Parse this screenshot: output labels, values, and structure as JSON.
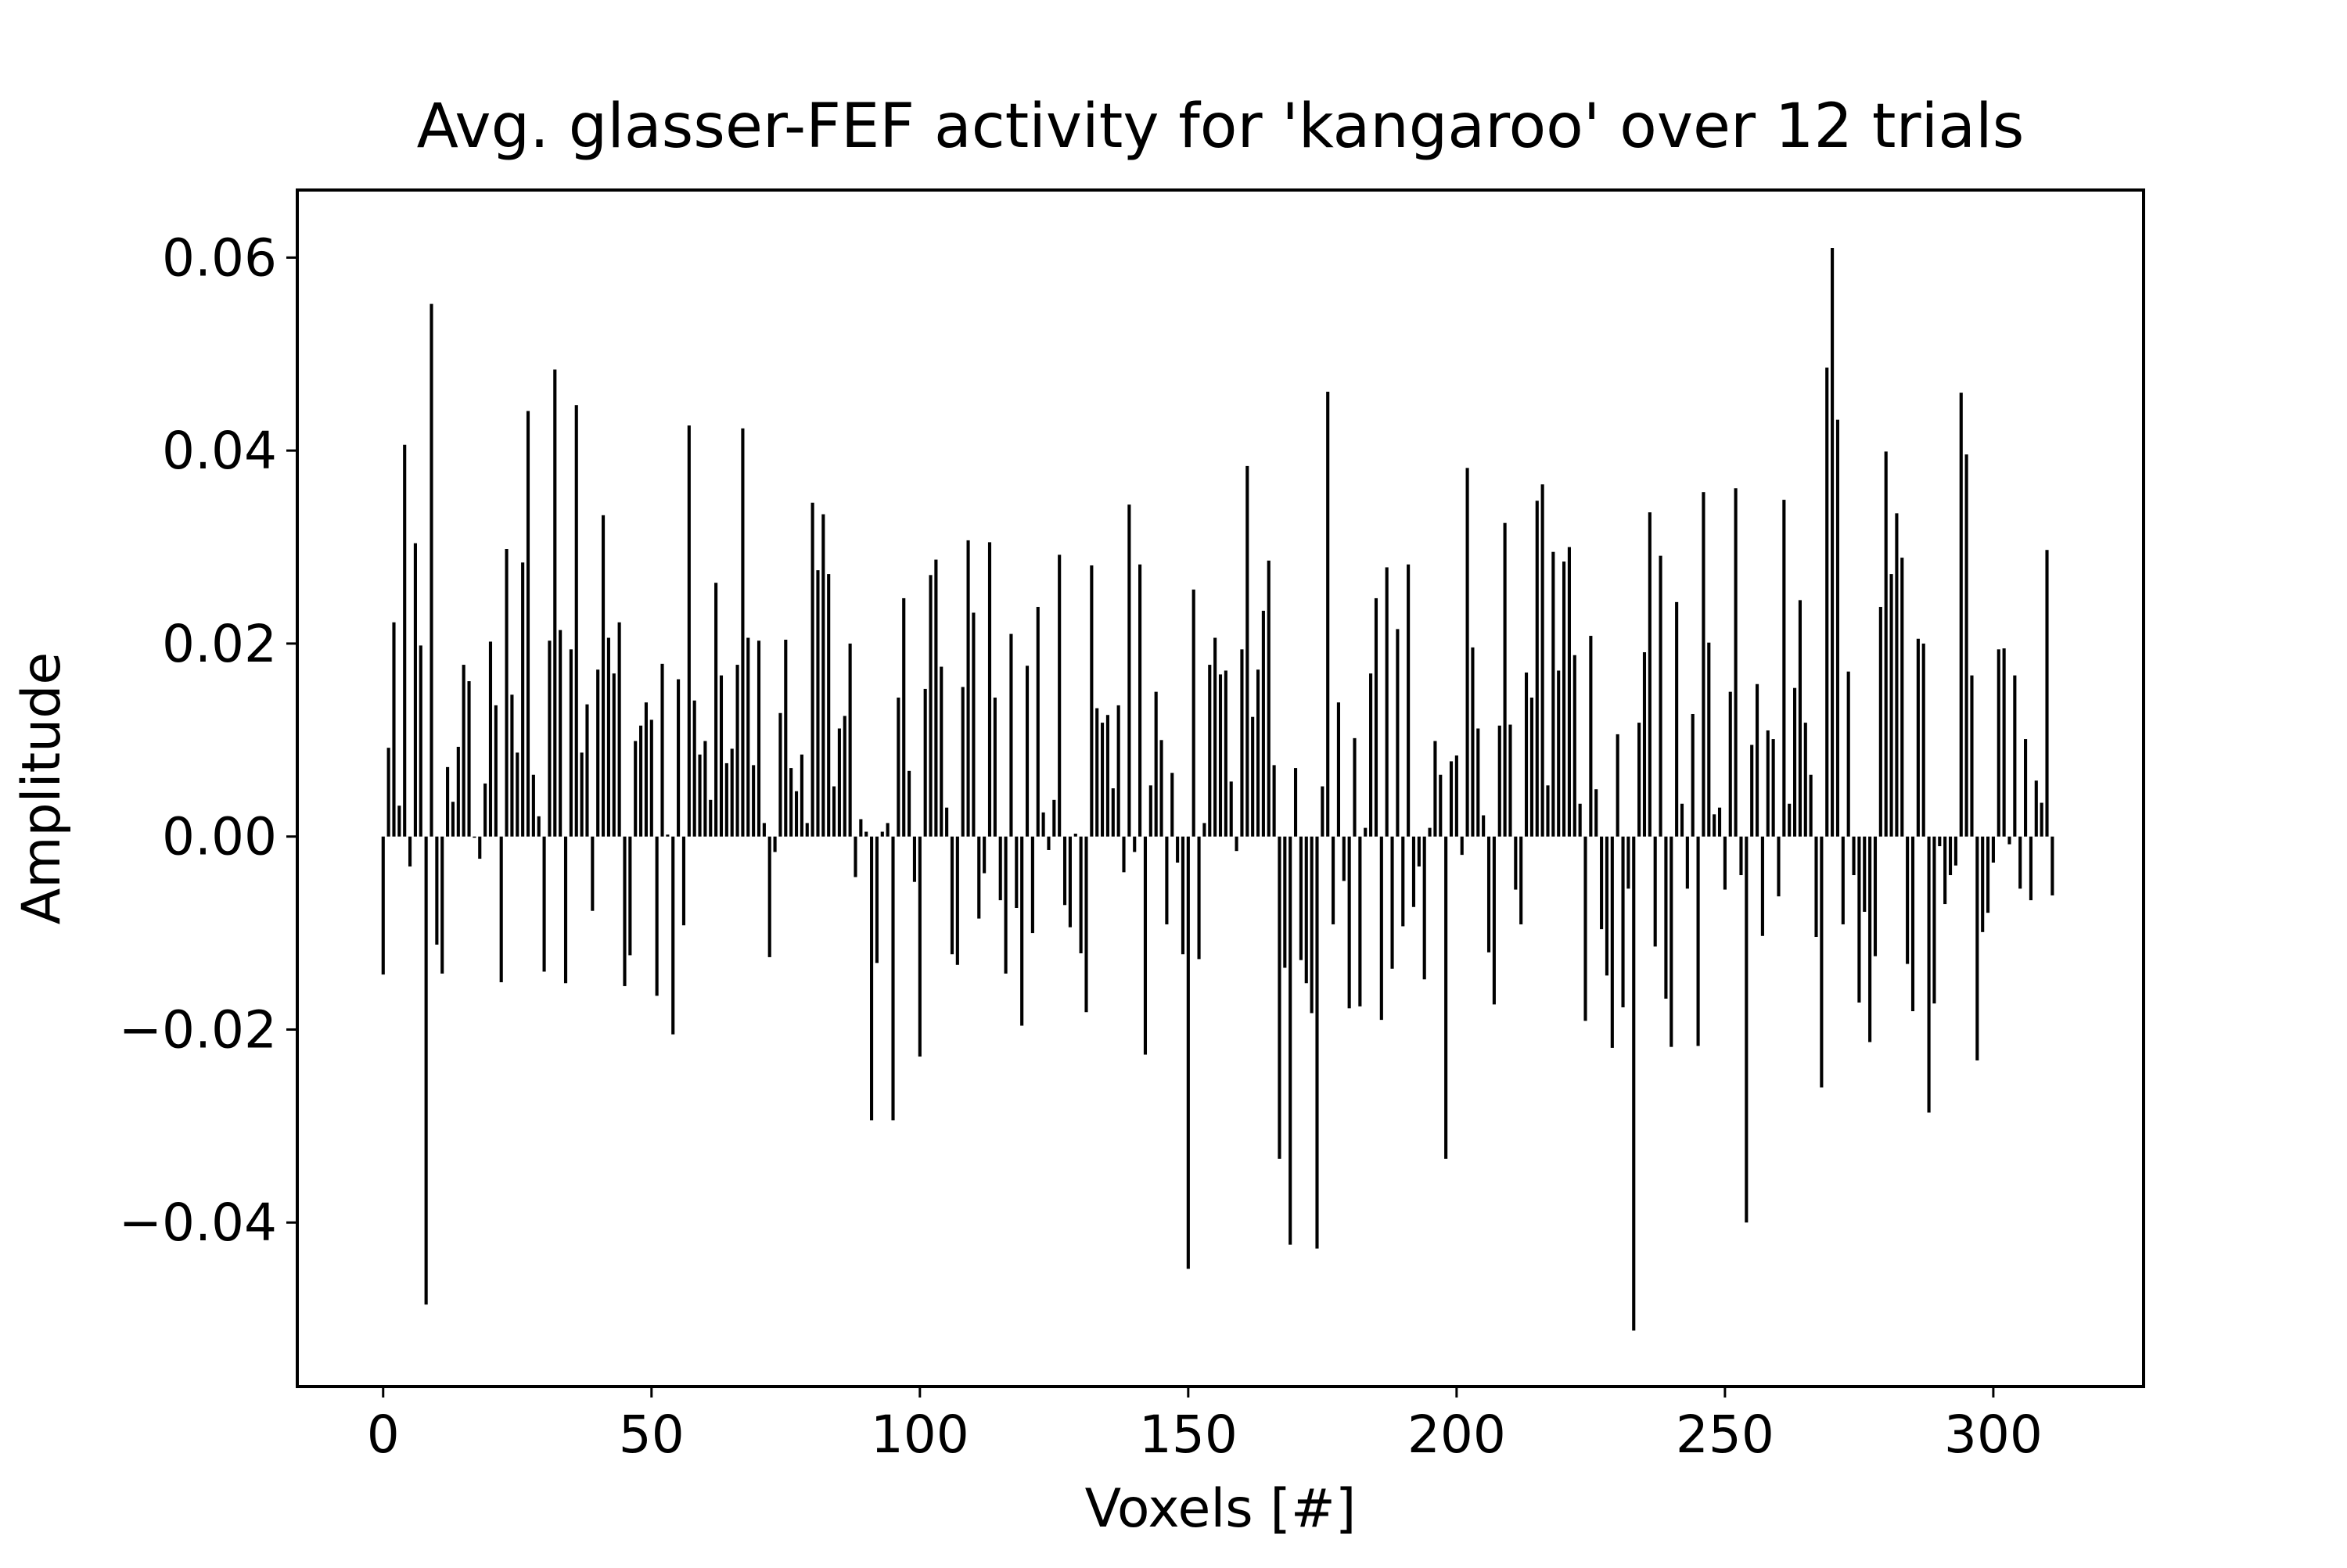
{
  "chart_data": {
    "type": "bar",
    "title": "Avg. glasser-FEF activity for 'kangaroo' over 12 trials",
    "xlabel": "Voxels [#]",
    "ylabel": "Amplitude",
    "xlim": [
      -16,
      328
    ],
    "ylim": [
      -0.057,
      0.067
    ],
    "x_ticks": [
      0,
      50,
      100,
      150,
      200,
      250,
      300
    ],
    "x_tick_labels": [
      "0",
      "50",
      "100",
      "150",
      "200",
      "250",
      "300"
    ],
    "y_ticks": [
      -0.04,
      -0.02,
      0.0,
      0.02,
      0.04,
      0.06
    ],
    "y_tick_labels": [
      "−0.04",
      "−0.02",
      "0.00",
      "0.02",
      "0.04",
      "0.06"
    ],
    "grid": false,
    "bar_color": "#000000",
    "x_start": 0,
    "values": [
      -0.0143,
      0.0092,
      0.0222,
      0.0032,
      0.0406,
      -0.0031,
      0.0304,
      0.0198,
      -0.0485,
      0.0552,
      -0.0112,
      -0.0142,
      0.0072,
      0.0036,
      0.0093,
      0.0178,
      0.0161,
      0.0,
      -0.0023,
      0.0055,
      0.0202,
      0.0136,
      -0.0151,
      0.0298,
      0.0147,
      0.0087,
      0.0284,
      0.0441,
      0.0064,
      0.0021,
      -0.014,
      0.0203,
      0.0484,
      0.0214,
      -0.0152,
      0.0194,
      0.0447,
      0.0087,
      0.0137,
      -0.0077,
      0.0173,
      0.0333,
      0.0206,
      0.0169,
      0.0222,
      -0.0155,
      -0.0123,
      0.0099,
      0.0115,
      0.0139,
      0.0121,
      -0.0165,
      0.0179,
      0.0002,
      -0.0205,
      0.0163,
      -0.0092,
      0.0426,
      0.0141,
      0.0085,
      0.0099,
      0.0038,
      0.0263,
      0.0167,
      0.0076,
      0.0091,
      0.0178,
      0.0423,
      0.0206,
      0.0074,
      0.0203,
      0.0014,
      -0.0125,
      -0.0016,
      0.0128,
      0.0204,
      0.0071,
      0.0047,
      0.0085,
      0.0014,
      0.0346,
      0.0276,
      0.0334,
      0.0272,
      0.0052,
      0.0112,
      0.0125,
      0.02,
      -0.0042,
      0.0018,
      0.0005,
      -0.0294,
      -0.0131,
      0.0005,
      0.0014,
      -0.0294,
      0.0144,
      0.0247,
      0.0068,
      -0.0047,
      -0.0228,
      0.0153,
      0.0271,
      0.0287,
      0.0176,
      0.003,
      -0.0122,
      -0.0133,
      0.0155,
      0.0307,
      0.0232,
      -0.0085,
      -0.0038,
      0.0305,
      0.0144,
      -0.0066,
      -0.0142,
      0.021,
      -0.0074,
      -0.0196,
      0.0177,
      -0.01,
      0.0238,
      0.0025,
      -0.0014,
      0.0038,
      0.0292,
      -0.0071,
      -0.0094,
      0.0003,
      -0.0121,
      -0.0182,
      0.0281,
      0.0133,
      0.0118,
      0.0126,
      0.005,
      0.0136,
      -0.0037,
      0.0344,
      -0.0016,
      0.0282,
      -0.0226,
      0.0053,
      0.015,
      0.01,
      -0.0091,
      0.0066,
      -0.0027,
      -0.0122,
      -0.0448,
      0.0256,
      -0.0127,
      0.0014,
      0.0178,
      0.0206,
      0.0168,
      0.0172,
      0.0057,
      -0.0015,
      0.0194,
      0.0384,
      0.0124,
      0.0173,
      0.0234,
      0.0286,
      0.0074,
      -0.0334,
      -0.0136,
      -0.0423,
      0.0071,
      -0.0128,
      -0.0152,
      -0.0183,
      -0.0427,
      0.0052,
      0.0461,
      -0.0091,
      0.0139,
      -0.0046,
      -0.0178,
      0.0102,
      -0.0176,
      0.0009,
      0.0169,
      0.0247,
      -0.019,
      0.0279,
      -0.0137,
      0.0215,
      -0.0093,
      0.0282,
      -0.0073,
      -0.0031,
      -0.0148,
      0.0009,
      0.0099,
      0.0064,
      -0.0334,
      0.0078,
      0.0084,
      -0.0019,
      0.0382,
      0.0196,
      0.0112,
      0.0022,
      -0.012,
      -0.0174,
      0.0115,
      0.0325,
      0.0116,
      -0.0055,
      -0.0091,
      0.017,
      0.0144,
      0.0348,
      0.0365,
      0.0053,
      0.0295,
      0.0172,
      0.0285,
      0.03,
      0.0188,
      0.0034,
      -0.0191,
      0.0208,
      0.0049,
      -0.0096,
      -0.0144,
      -0.0219,
      0.0106,
      -0.0177,
      -0.0054,
      -0.0512,
      0.0118,
      0.0191,
      0.0336,
      -0.0114,
      0.0291,
      -0.0168,
      -0.0218,
      0.0243,
      0.0034,
      -0.0054,
      0.0127,
      -0.0217,
      0.0357,
      0.0201,
      0.0023,
      0.003,
      -0.0055,
      0.015,
      0.0361,
      -0.004,
      -0.04,
      0.0095,
      0.0158,
      -0.0103,
      0.011,
      0.0101,
      -0.0062,
      0.0349,
      0.0034,
      0.0154,
      0.0245,
      0.0118,
      0.0064,
      -0.0104,
      -0.026,
      0.0486,
      0.061,
      0.0432,
      -0.0091,
      0.0171,
      -0.004,
      -0.0172,
      -0.0078,
      -0.0213,
      -0.0124,
      0.0238,
      0.0399,
      0.0272,
      0.0335,
      0.0289,
      -0.0132,
      -0.0181,
      0.0205,
      0.02,
      -0.0286,
      -0.0173,
      -0.001,
      -0.007,
      -0.004,
      -0.003,
      0.046,
      0.0396,
      0.0167,
      -0.0232,
      -0.0099,
      -0.0079,
      -0.0027,
      0.0194,
      0.0195,
      -0.0008,
      0.0167,
      -0.0054,
      0.0101,
      -0.0066,
      0.0058,
      0.0035,
      0.0297,
      -0.0061
    ]
  }
}
